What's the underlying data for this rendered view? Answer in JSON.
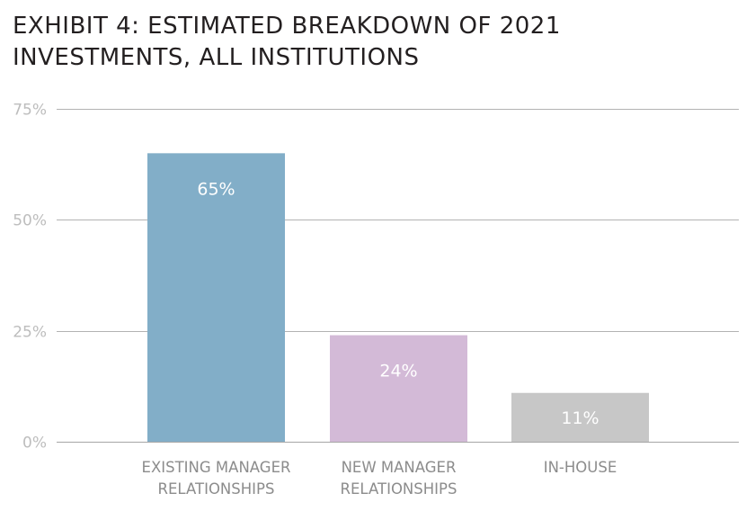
{
  "title_lines": [
    "EXHIBIT 4: ESTIMATED BREAKDOWN OF 2021",
    "INVESTMENTS, ALL INSTITUTIONS"
  ],
  "chart_data": {
    "type": "bar",
    "title": "EXHIBIT 4: ESTIMATED BREAKDOWN OF 2021 INVESTMENTS, ALL INSTITUTIONS",
    "categories": [
      [
        "EXISTING MANAGER",
        "RELATIONSHIPS"
      ],
      [
        "NEW MANAGER",
        "RELATIONSHIPS"
      ],
      [
        "IN-HOUSE"
      ]
    ],
    "values": [
      65,
      24,
      11
    ],
    "data_labels": [
      "65%",
      "24%",
      "11%"
    ],
    "bar_colors": [
      "#82aec8",
      "#d3bad7",
      "#c7c7c7"
    ],
    "ylim": [
      0,
      75
    ],
    "yticks": [
      0,
      25,
      50,
      75
    ],
    "ytick_labels": [
      "0%",
      "25%",
      "50%",
      "75%"
    ],
    "grid": true,
    "legend": "none",
    "xlabel": "",
    "ylabel": ""
  }
}
